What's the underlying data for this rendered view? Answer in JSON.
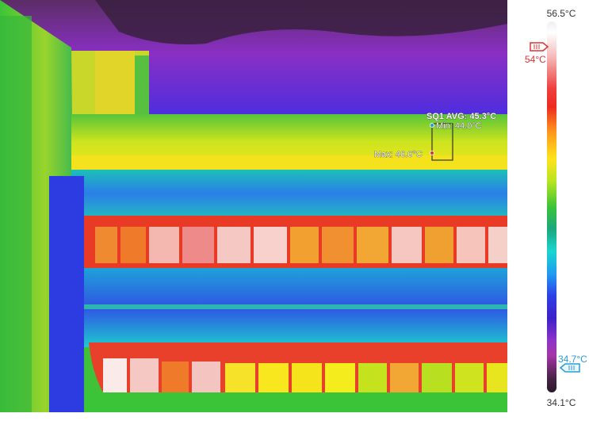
{
  "annotation": {
    "title": "SQ1 AVG: 45.3°C",
    "min": "Min: 44.0°C",
    "max": "Max: 46.6°C"
  },
  "scale": {
    "max": "56.5°C",
    "min": "34.1°C",
    "high_marker": "54°C",
    "low_marker": "34.7°C"
  },
  "colors": {
    "high_marker": "#e23030",
    "low_marker": "#2a9bd8"
  }
}
